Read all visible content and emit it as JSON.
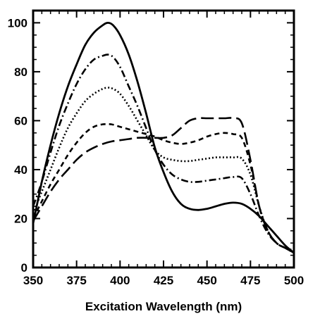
{
  "chart_data": {
    "type": "line",
    "title": "",
    "xlabel": "Excitation Wavelength (nm)",
    "ylabel": "",
    "xlim": [
      350,
      500
    ],
    "ylim": [
      0,
      105
    ],
    "xticks": [
      350,
      375,
      400,
      425,
      450,
      475,
      500
    ],
    "yticks": [
      0,
      20,
      40,
      60,
      80,
      100
    ],
    "grid": false,
    "legend": "none",
    "series": [
      {
        "style": "solid",
        "x": [
          350,
          355,
          360,
          365,
          370,
          375,
          380,
          385,
          390,
          393,
          396,
          400,
          405,
          410,
          415,
          420,
          425,
          430,
          435,
          440,
          445,
          450,
          455,
          460,
          465,
          470,
          475,
          480,
          485,
          490,
          495,
          500
        ],
        "y": [
          18,
          35,
          50,
          63,
          74,
          83,
          91,
          96,
          99,
          100,
          99,
          95,
          87,
          76,
          63,
          49,
          39,
          31,
          26,
          24,
          23.5,
          24,
          25,
          26,
          26.5,
          26,
          24,
          21,
          17,
          13,
          9,
          6
        ]
      },
      {
        "style": "dash-dot",
        "x": [
          350,
          355,
          360,
          365,
          370,
          375,
          380,
          385,
          390,
          393,
          396,
          400,
          405,
          410,
          415,
          420,
          425,
          430,
          435,
          440,
          445,
          450,
          455,
          460,
          465,
          470,
          475,
          480,
          485,
          490,
          495,
          500
        ],
        "y": [
          25,
          35,
          47,
          58,
          67,
          75,
          81,
          85,
          86.5,
          87,
          86,
          82,
          74,
          66,
          57,
          48,
          42,
          38,
          36,
          35,
          35,
          35.5,
          36,
          36.5,
          37,
          36.5,
          30,
          21,
          14,
          10,
          8,
          7
        ]
      },
      {
        "style": "dotted",
        "x": [
          350,
          355,
          360,
          365,
          370,
          375,
          380,
          385,
          390,
          393,
          396,
          400,
          405,
          410,
          415,
          420,
          425,
          430,
          435,
          440,
          445,
          450,
          455,
          460,
          465,
          470,
          475,
          480,
          485,
          490,
          495,
          500
        ],
        "y": [
          22,
          31,
          40,
          49,
          57,
          63,
          68,
          71,
          73,
          73.5,
          73,
          71,
          66,
          60,
          54,
          48,
          45,
          44,
          43.5,
          43.5,
          44,
          44.5,
          45,
          45,
          45,
          44.5,
          38,
          25,
          15,
          10,
          8,
          6
        ]
      },
      {
        "style": "dashed",
        "x": [
          350,
          355,
          360,
          365,
          370,
          375,
          380,
          385,
          390,
          395,
          400,
          405,
          410,
          415,
          420,
          425,
          430,
          435,
          440,
          445,
          450,
          455,
          460,
          465,
          470,
          475,
          480,
          485,
          490,
          495,
          500
        ],
        "y": [
          20,
          27,
          34,
          40,
          46,
          51,
          55,
          57.5,
          58.5,
          58.5,
          57.5,
          56.5,
          55.5,
          54.5,
          53.5,
          52,
          51,
          50.5,
          51,
          52,
          53.5,
          54.5,
          55,
          54.5,
          53,
          42,
          25,
          15,
          10,
          8,
          6
        ]
      },
      {
        "style": "long-dash",
        "x": [
          350,
          355,
          360,
          365,
          370,
          375,
          380,
          385,
          390,
          395,
          400,
          405,
          410,
          415,
          420,
          425,
          430,
          435,
          440,
          445,
          450,
          455,
          460,
          465,
          470,
          475,
          480,
          485,
          490,
          495,
          500
        ],
        "y": [
          19,
          25,
          31,
          36,
          40,
          44,
          47,
          49,
          50.5,
          51.5,
          52,
          52.5,
          53,
          53,
          53,
          53,
          54,
          57,
          60,
          61,
          61,
          61,
          61,
          61,
          59,
          44,
          25,
          15,
          10,
          8,
          6
        ]
      }
    ]
  }
}
